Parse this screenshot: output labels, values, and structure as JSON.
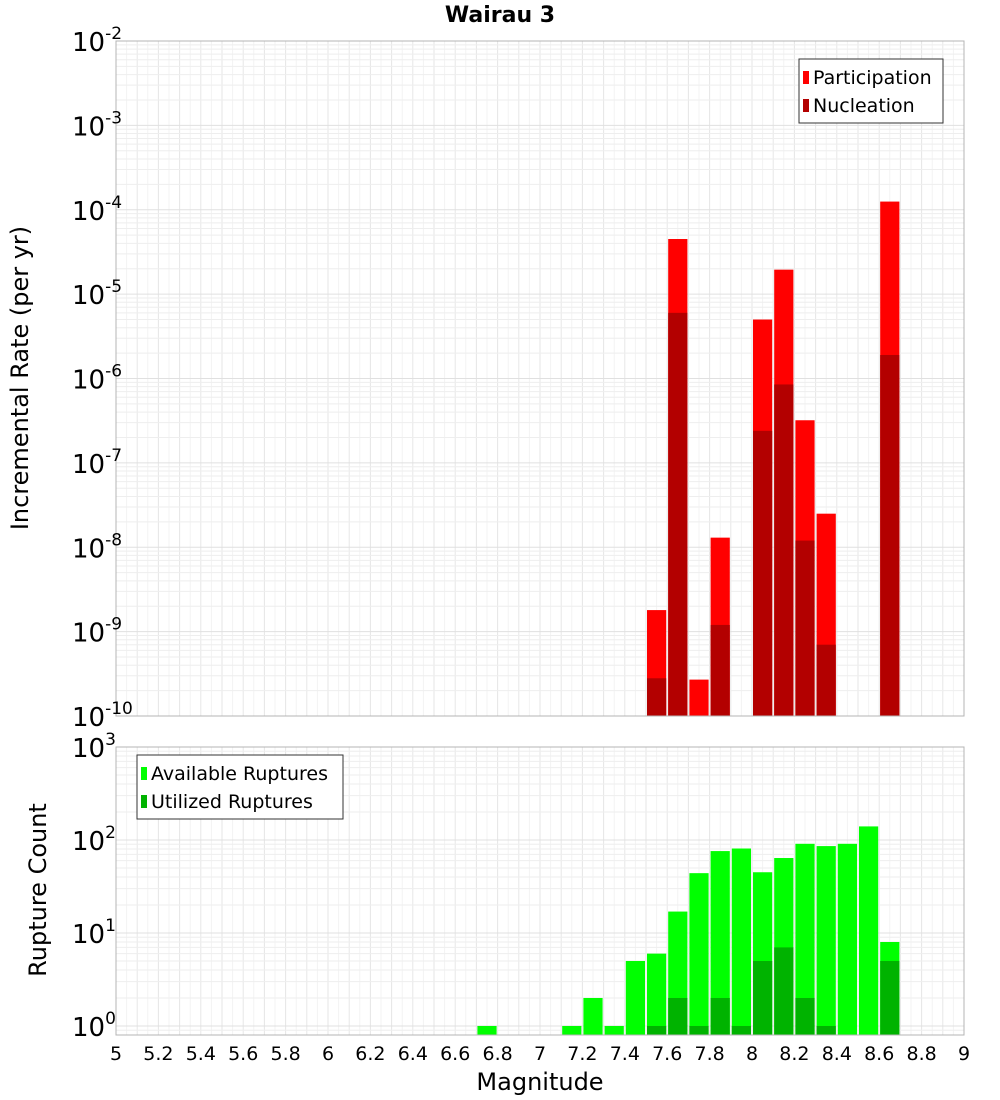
{
  "chart_data": [
    {
      "type": "bar",
      "title": "Wairau 3",
      "ylabel": "Incremental Rate (per yr)",
      "yscale": "log",
      "ylim": [
        1e-10,
        0.01
      ],
      "xlim": [
        5,
        9
      ],
      "grid": true,
      "legend_placement": "top-right",
      "bar_width": 0.1,
      "y_tick_labels": [
        {
          "base": "10",
          "exp": "-10",
          "value": 1e-10
        },
        {
          "base": "10",
          "exp": "-9",
          "value": 1e-09
        },
        {
          "base": "10",
          "exp": "-8",
          "value": 1e-08
        },
        {
          "base": "10",
          "exp": "-7",
          "value": 1e-07
        },
        {
          "base": "10",
          "exp": "-6",
          "value": 1e-06
        },
        {
          "base": "10",
          "exp": "-5",
          "value": 1e-05
        },
        {
          "base": "10",
          "exp": "-4",
          "value": 0.0001
        },
        {
          "base": "10",
          "exp": "-3",
          "value": 0.001
        },
        {
          "base": "10",
          "exp": "-2",
          "value": 0.01
        }
      ],
      "series": [
        {
          "name": "Participation",
          "color": "#ff0000",
          "x": [
            7.55,
            7.65,
            7.75,
            7.85,
            8.05,
            8.15,
            8.25,
            8.35,
            8.65
          ],
          "values": [
            1.8e-09,
            4.5e-05,
            2.7e-10,
            1.3e-08,
            5e-06,
            1.95e-05,
            3.2e-07,
            2.5e-08,
            0.000125
          ]
        },
        {
          "name": "Nucleation",
          "color": "#b30000",
          "x": [
            7.55,
            7.65,
            7.85,
            8.05,
            8.15,
            8.25,
            8.35,
            8.65
          ],
          "values": [
            2.8e-10,
            6e-06,
            1.2e-09,
            2.4e-07,
            8.5e-07,
            1.2e-08,
            7e-10,
            1.9e-06
          ]
        }
      ]
    },
    {
      "type": "bar",
      "xlabel": "Magnitude",
      "ylabel": "Rupture Count",
      "yscale": "log",
      "ylim": [
        0.8,
        1000
      ],
      "xlim": [
        5,
        9
      ],
      "grid": true,
      "legend_placement": "top-left",
      "bar_width": 0.1,
      "x_tick_labels": [
        "5",
        "5.2",
        "5.4",
        "5.6",
        "5.8",
        "6",
        "6.2",
        "6.4",
        "6.6",
        "6.8",
        "7",
        "7.2",
        "7.4",
        "7.6",
        "7.8",
        "8",
        "8.2",
        "8.4",
        "8.6",
        "8.8",
        "9"
      ],
      "y_tick_labels": [
        {
          "base": "10",
          "exp": "0",
          "value": 1
        },
        {
          "base": "10",
          "exp": "1",
          "value": 10
        },
        {
          "base": "10",
          "exp": "2",
          "value": 100
        },
        {
          "base": "10",
          "exp": "3",
          "value": 1000
        }
      ],
      "series": [
        {
          "name": "Available Ruptures",
          "color": "#00ff00",
          "x": [
            6.75,
            7.15,
            7.25,
            7.35,
            7.45,
            7.55,
            7.65,
            7.75,
            7.85,
            7.95,
            8.05,
            8.15,
            8.25,
            8.35,
            8.45,
            8.55,
            8.65
          ],
          "values": [
            1,
            1,
            2,
            1,
            5,
            6,
            17,
            44,
            76,
            81,
            45,
            64,
            91,
            86,
            91,
            140,
            8
          ]
        },
        {
          "name": "Utilized Ruptures",
          "color": "#00b300",
          "x": [
            7.55,
            7.65,
            7.75,
            7.85,
            7.95,
            8.05,
            8.15,
            8.25,
            8.35,
            8.65
          ],
          "values": [
            1,
            2,
            1,
            2,
            1,
            5,
            7,
            2,
            1,
            5
          ]
        }
      ]
    }
  ]
}
